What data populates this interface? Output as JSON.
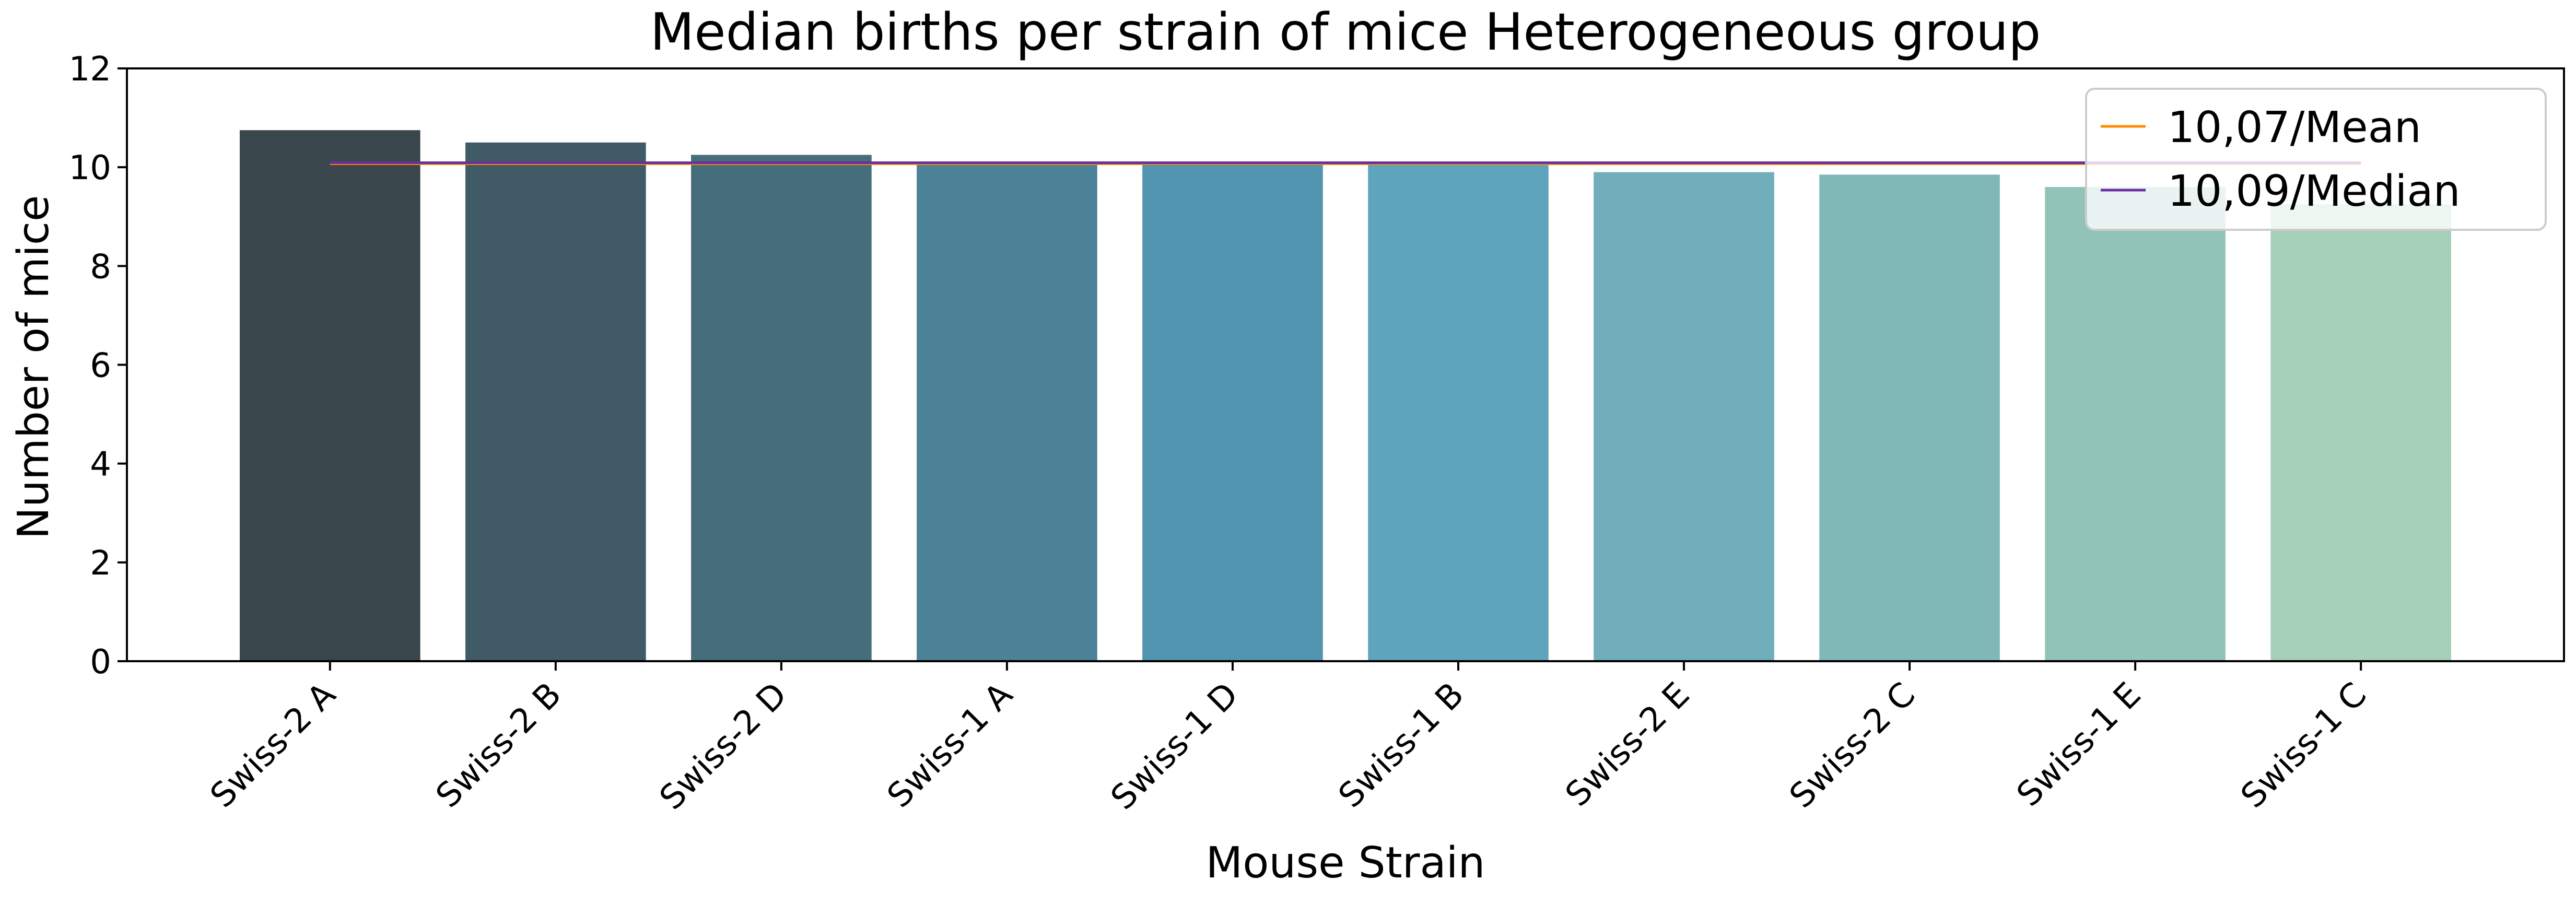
{
  "chart_data": {
    "type": "bar",
    "title": "Median births per strain of mice Heterogeneous group",
    "xlabel": "Mouse Strain",
    "ylabel": "Number of mice",
    "categories": [
      "Swiss-2 A",
      "Swiss-2 B",
      "Swiss-2 D",
      "Swiss-1 A",
      "Swiss-1 D",
      "Swiss-1 B",
      "Swiss-2 E",
      "Swiss-2 C",
      "Swiss-1 E",
      "Swiss-1 C"
    ],
    "values": [
      10.75,
      10.5,
      10.25,
      10.1,
      10.08,
      10.07,
      9.9,
      9.85,
      9.6,
      9.25
    ],
    "bar_colors": [
      "#39474c",
      "#405a66",
      "#466d7b",
      "#4b8298",
      "#5195b0",
      "#5da4bc",
      "#6faeba",
      "#80b7b7",
      "#92c3b9",
      "#a5cfb9"
    ],
    "ylim": [
      0,
      12
    ],
    "yticks": [
      0,
      2,
      4,
      6,
      8,
      10,
      12
    ],
    "grid": false,
    "reference_lines": [
      {
        "name": "10,07/Mean",
        "value": 10.07,
        "color": "#ff8c00"
      },
      {
        "name": "10,09/Median",
        "value": 10.09,
        "color": "#6a2e9e"
      }
    ],
    "legend": {
      "position": "top-right",
      "entries": [
        "10,07/Mean",
        "10,09/Median"
      ]
    }
  }
}
